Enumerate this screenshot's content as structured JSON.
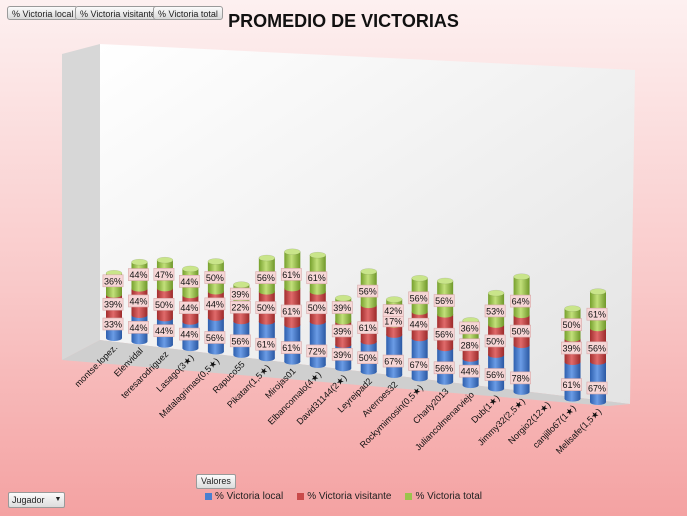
{
  "filter_chips": [
    "% Victoria local",
    "% Victoria visitante",
    "% Victoria total"
  ],
  "valores_label": "Valores",
  "dropdown": {
    "label": "Jugador",
    "arrow": "▼"
  },
  "colors": {
    "local": "#4a7fd0",
    "visitante": "#c94a4a",
    "total": "#9bc34c"
  },
  "chart_data": {
    "type": "bar",
    "stacked": true,
    "title": "PROMEDIO DE VICTORIAS",
    "categories": [
      "montse.lopez.",
      "Elenvidal",
      "teresarodriguez",
      "Lasago(3★)",
      "Matalagrimas(0,5★)",
      "Rapuco55",
      "Pikatan(1,5★)",
      "Mirojas01",
      "Elbancomalo(4★)",
      "David31144(2★)",
      "Leyreipad2",
      "Averroes32",
      "Rockymimosin(0,5★)",
      "Charly2013",
      "Juliancolmenarviejo",
      "Dub(1★)",
      "Jimmy32(2,5★)",
      "Norgio2(12★)",
      "canjillo67(1★)",
      "Melisafe(1,5★)"
    ],
    "series": [
      {
        "name": "% Victoria local",
        "labels": [
          "33%",
          "44%",
          "44%",
          "44%",
          "56%",
          "56%",
          "61%",
          "61%",
          "72%",
          "39%",
          "50%",
          "67%",
          "67%",
          "56%",
          "44%",
          "56%",
          "78%",
          "",
          "61%",
          "67%"
        ]
      },
      {
        "name": "% Victoria visitante",
        "labels": [
          "39%",
          "44%",
          "50%",
          "44%",
          "44%",
          "22%",
          "50%",
          "61%",
          "50%",
          "39%",
          "61%",
          "17%",
          "44%",
          "56%",
          "28%",
          "50%",
          "50%",
          "",
          "39%",
          "56%"
        ]
      },
      {
        "name": "% Victoria total",
        "labels": [
          "36%",
          "44%",
          "47%",
          "44%",
          "50%",
          "39%",
          "56%",
          "61%",
          "61%",
          "39%",
          "56%",
          "42%",
          "56%",
          "56%",
          "36%",
          "53%",
          "64%",
          "",
          "50%",
          "61%"
        ]
      }
    ]
  }
}
